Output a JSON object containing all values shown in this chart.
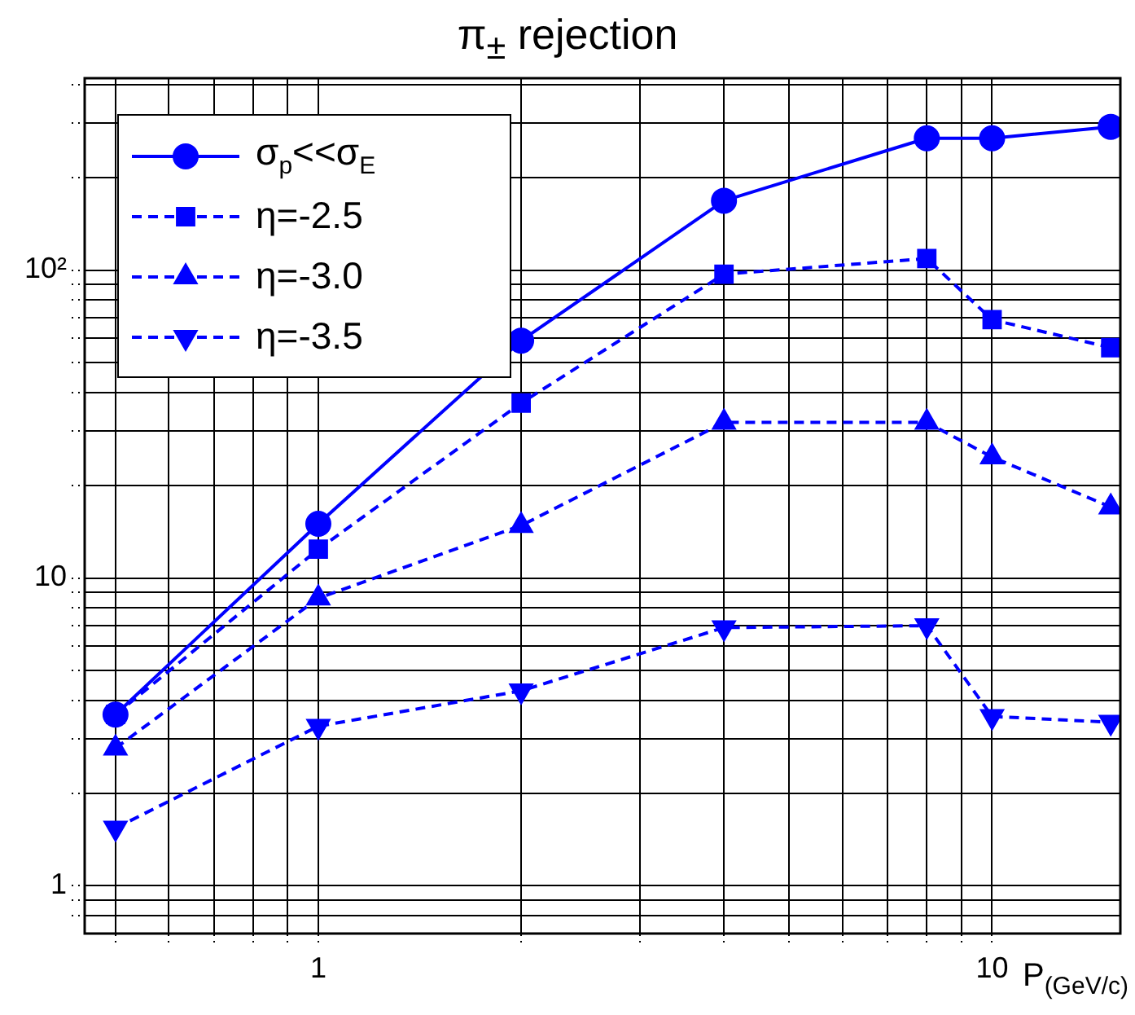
{
  "chart_data": {
    "type": "line",
    "title": "π$_{±}$ rejection",
    "xlabel": "P$_{(GeV/c)}$",
    "x": [
      0.5,
      1,
      2,
      4,
      8,
      10,
      15
    ],
    "series": [
      {
        "name": "σ$_{p}$<<σ$_{E}$",
        "color": "#0000ff",
        "marker": "circle",
        "line_style": "solid",
        "values": [
          3.6,
          15,
          59,
          168,
          268,
          268,
          292
        ]
      },
      {
        "name": "η=-2.5",
        "color": "#0000ff",
        "marker": "square",
        "line_style": "dashed",
        "values": [
          3.6,
          12.4,
          37,
          97,
          109,
          69,
          56
        ]
      },
      {
        "name": "η=-3.0",
        "color": "#0000ff",
        "marker": "triangle",
        "line_style": "dashed",
        "values": [
          2.8,
          8.6,
          14.8,
          32,
          32,
          24.7,
          17
        ]
      },
      {
        "name": "η=-3.5",
        "color": "#0000ff",
        "marker": "triangle_down",
        "line_style": "dashed",
        "values": [
          1.54,
          3.3,
          4.3,
          6.9,
          7.0,
          3.55,
          3.4
        ]
      }
    ],
    "log": "xy",
    "xlim": [
      0.45,
      15.5
    ],
    "ylim": [
      0.72,
      420
    ],
    "xticks": [
      {
        "value": 0.5,
        "label": null
      },
      {
        "value": 0.6,
        "label": null
      },
      {
        "value": 0.7,
        "label": null
      },
      {
        "value": 0.8,
        "label": null
      },
      {
        "value": 0.9,
        "label": null
      },
      1,
      {
        "value": 2,
        "label": null
      },
      {
        "value": 3,
        "label": null
      },
      {
        "value": 4,
        "label": null
      },
      {
        "value": 5,
        "label": null
      },
      {
        "value": 6,
        "label": null
      },
      {
        "value": 7,
        "label": null
      },
      {
        "value": 8,
        "label": null
      },
      {
        "value": 9,
        "label": null
      },
      10
    ],
    "yticks": [
      {
        "value": 0.8,
        "label": null
      },
      {
        "value": 0.9,
        "label": null
      },
      1,
      {
        "value": 2,
        "label": null
      },
      {
        "value": 3,
        "label": null
      },
      {
        "value": 4,
        "label": null
      },
      {
        "value": 5,
        "label": null
      },
      {
        "value": 6,
        "label": null
      },
      {
        "value": 7,
        "label": null
      },
      {
        "value": 8,
        "label": null
      },
      {
        "value": 9,
        "label": null
      },
      10,
      {
        "value": 20,
        "label": null
      },
      {
        "value": 30,
        "label": null
      },
      {
        "value": 40,
        "label": null
      },
      {
        "value": 50,
        "label": null
      },
      {
        "value": 60,
        "label": null
      },
      {
        "value": 70,
        "label": null
      },
      {
        "value": 80,
        "label": null
      },
      {
        "value": 90,
        "label": null
      },
      {
        "value": 100,
        "label": "10²"
      },
      {
        "value": 200,
        "label": null
      },
      {
        "value": 300,
        "label": null
      },
      {
        "value": 400,
        "label": null
      }
    ],
    "grid": true,
    "legend": "top left"
  }
}
